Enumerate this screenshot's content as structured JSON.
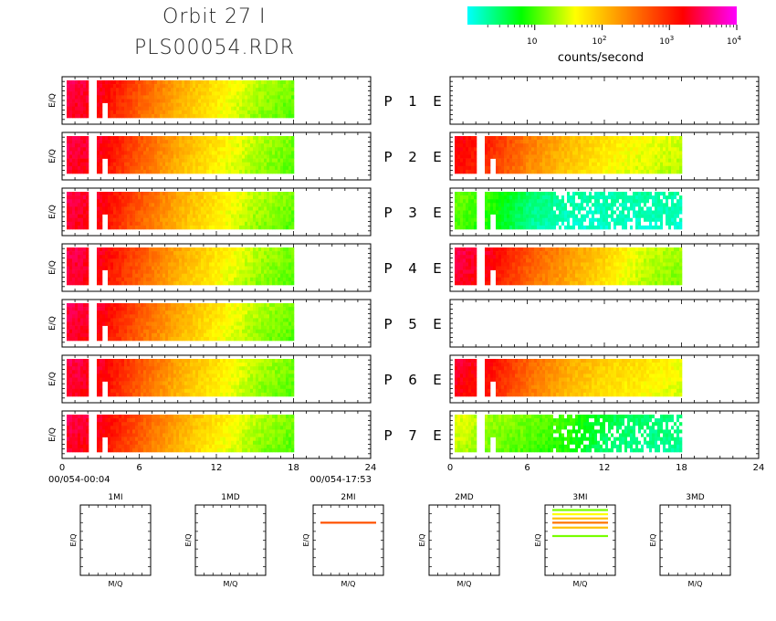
{
  "title": {
    "line1": "Orbit 27 I",
    "line2": "PLS00054.RDR"
  },
  "colorbar": {
    "label": "counts/second",
    "stops": [
      "#00ffff",
      "#00ff00",
      "#ffff00",
      "#ff8000",
      "#ff0000",
      "#ff00ff"
    ],
    "ticks": [
      {
        "base": "10",
        "exp": ""
      },
      {
        "base": "10",
        "exp": "2"
      },
      {
        "base": "10",
        "exp": "3"
      },
      {
        "base": "10",
        "exp": "4"
      }
    ]
  },
  "ylabel": "E/Q",
  "xlabel_small": "M/Q",
  "row_labels": [
    {
      "p": "P",
      "n": "1",
      "e": "E"
    },
    {
      "p": "P",
      "n": "2",
      "e": "E"
    },
    {
      "p": "P",
      "n": "3",
      "e": "E"
    },
    {
      "p": "P",
      "n": "4",
      "e": "E"
    },
    {
      "p": "P",
      "n": "5",
      "e": "E"
    },
    {
      "p": "P",
      "n": "6",
      "e": "E"
    },
    {
      "p": "P",
      "n": "7",
      "e": "E"
    }
  ],
  "time_start": "00/054-00:04",
  "time_end": "00/054-17:53",
  "small_panels": [
    {
      "title": "1MI"
    },
    {
      "title": "1MD"
    },
    {
      "title": "2MI"
    },
    {
      "title": "2MD"
    },
    {
      "title": "3MI"
    },
    {
      "title": "3MD"
    }
  ],
  "chart_data": {
    "type": "heatmap",
    "x_ticks": [
      "0",
      "6",
      "12",
      "18",
      "24"
    ],
    "xlim": [
      0,
      24
    ],
    "color_scale": "log",
    "color_range": [
      1,
      10000
    ],
    "data_extent_hours": [
      0,
      18
    ],
    "panels_left": [
      {
        "pixel": 1,
        "channel": "I",
        "profile": [
          3000,
          2000,
          500,
          150,
          60,
          25,
          15
        ]
      },
      {
        "pixel": 2,
        "channel": "I",
        "profile": [
          3000,
          2000,
          500,
          150,
          60,
          25,
          15
        ]
      },
      {
        "pixel": 3,
        "channel": "I",
        "profile": [
          3000,
          2000,
          500,
          150,
          60,
          25,
          15
        ]
      },
      {
        "pixel": 4,
        "channel": "I",
        "profile": [
          3000,
          2000,
          500,
          150,
          60,
          25,
          15
        ]
      },
      {
        "pixel": 5,
        "channel": "I",
        "profile": [
          3000,
          2000,
          500,
          150,
          60,
          25,
          15
        ]
      },
      {
        "pixel": 6,
        "channel": "I",
        "profile": [
          3000,
          2000,
          500,
          150,
          60,
          25,
          15
        ]
      },
      {
        "pixel": 7,
        "channel": "I",
        "profile": [
          3000,
          2000,
          500,
          150,
          60,
          25,
          15
        ]
      }
    ],
    "panels_right": [
      {
        "pixel": 1,
        "channel": "E",
        "profile": []
      },
      {
        "pixel": 2,
        "channel": "E",
        "profile": [
          2000,
          1000,
          300,
          120,
          60,
          40,
          30
        ]
      },
      {
        "pixel": 3,
        "channel": "E",
        "profile": [
          15,
          10,
          3,
          2,
          2,
          2,
          2
        ]
      },
      {
        "pixel": 4,
        "channel": "E",
        "profile": [
          3000,
          2000,
          500,
          200,
          80,
          30,
          20
        ]
      },
      {
        "pixel": 5,
        "channel": "E",
        "profile": []
      },
      {
        "pixel": 6,
        "channel": "E",
        "profile": [
          2500,
          1500,
          400,
          150,
          80,
          60,
          40
        ]
      },
      {
        "pixel": 7,
        "channel": "E",
        "profile": [
          40,
          20,
          15,
          10,
          4,
          3,
          3
        ]
      }
    ],
    "mass_panels": [
      {
        "name": "1MI",
        "lines": []
      },
      {
        "name": "1MD",
        "lines": []
      },
      {
        "name": "2MI",
        "lines": [
          {
            "level": 0.75,
            "counts": 500
          }
        ]
      },
      {
        "name": "2MD",
        "lines": []
      },
      {
        "name": "3MI",
        "lines": [
          {
            "level": 0.93,
            "counts": 15
          },
          {
            "level": 0.87,
            "counts": 40
          },
          {
            "level": 0.81,
            "counts": 100
          },
          {
            "level": 0.75,
            "counts": 300
          },
          {
            "level": 0.68,
            "counts": 100
          },
          {
            "level": 0.56,
            "counts": 15
          }
        ]
      },
      {
        "name": "3MD",
        "lines": []
      }
    ]
  }
}
